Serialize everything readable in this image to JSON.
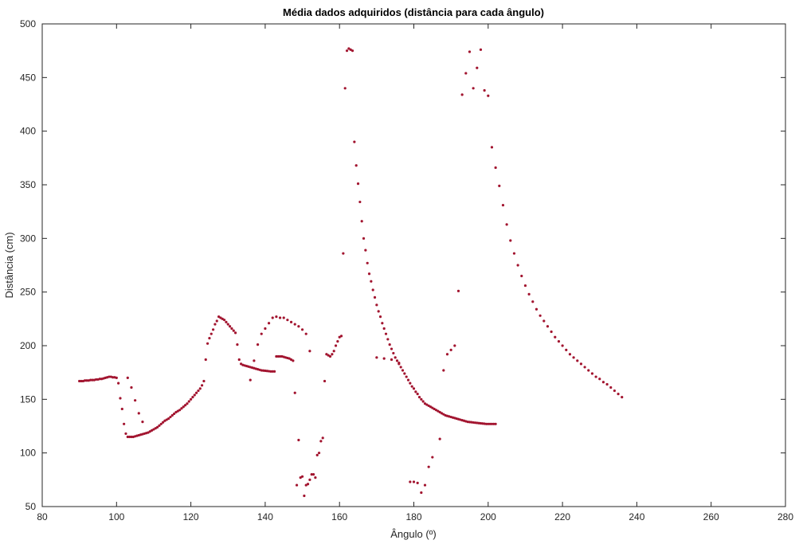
{
  "chart_data": {
    "type": "scatter",
    "title": "Média dados adquiridos (distância para cada ângulo)",
    "xlabel": "Ângulo (º)",
    "ylabel": "Distância (cm)",
    "xlim": [
      80,
      280
    ],
    "ylim": [
      50,
      500
    ],
    "xticks": [
      80,
      100,
      120,
      140,
      160,
      180,
      200,
      220,
      240,
      260,
      280
    ],
    "yticks": [
      50,
      100,
      150,
      200,
      250,
      300,
      350,
      400,
      450,
      500
    ],
    "grid": false,
    "marker_color": "#a2142f",
    "x_step": 0.5,
    "x_start": 90,
    "y": [
      167,
      167,
      167,
      167.5,
      167.5,
      167.5,
      168,
      168,
      168,
      168.5,
      168.5,
      169,
      169,
      169.5,
      170,
      170.5,
      171,
      171,
      170.5,
      170.5,
      170,
      165,
      151,
      141,
      127,
      118,
      115,
      115,
      115,
      115,
      115.5,
      116,
      116.5,
      117,
      117.5,
      118,
      118.5,
      119,
      120,
      121,
      122,
      123,
      124,
      125.5,
      127,
      128.5,
      130,
      131,
      132,
      133.5,
      135,
      136.5,
      138,
      139,
      140,
      141.5,
      143,
      144.5,
      146,
      148,
      150,
      152,
      154,
      156,
      158,
      160,
      163,
      167,
      187,
      202,
      207,
      211,
      215,
      220,
      223,
      227,
      226,
      225,
      224,
      222,
      220,
      218,
      216,
      214,
      212,
      201,
      187,
      183,
      182,
      181.5,
      181,
      180.5,
      180,
      179.5,
      179,
      178.5,
      178,
      177.5,
      177,
      176.8,
      176.6,
      176.4,
      176.2,
      176,
      176,
      176,
      190,
      190,
      190,
      190,
      189.5,
      189,
      188.5,
      188,
      187,
      186,
      156,
      70,
      112,
      77,
      78,
      60,
      70,
      71,
      75,
      80,
      80,
      77,
      98,
      100,
      111,
      114,
      167,
      192,
      191,
      190,
      192,
      195,
      200,
      204,
      208,
      209,
      286,
      440,
      475,
      477,
      476,
      475,
      390,
      368,
      351,
      334,
      316,
      300,
      289,
      277,
      267,
      260,
      252,
      245,
      238,
      232,
      227,
      221,
      216,
      211,
      206,
      201,
      197,
      193,
      189,
      186,
      183,
      180,
      177,
      174,
      171,
      168,
      165,
      162,
      160,
      157,
      155,
      152,
      150,
      148,
      146,
      145,
      144,
      143,
      142,
      141,
      140,
      139,
      138,
      137,
      136,
      135,
      134.5,
      134,
      133.5,
      133,
      132.5,
      132,
      131.5,
      131,
      130.5,
      130,
      129.5,
      129,
      128.8,
      128.6,
      128.4,
      128.2,
      128,
      127.8,
      127.6,
      127.4,
      127.2,
      127,
      127,
      127,
      127,
      127,
      127
    ],
    "extra_points": [
      [
        103,
        170
      ],
      [
        104,
        161
      ],
      [
        105,
        149
      ],
      [
        106,
        137
      ],
      [
        107,
        129
      ],
      [
        136,
        168
      ],
      [
        137,
        186
      ],
      [
        138,
        201
      ],
      [
        139,
        211
      ],
      [
        140,
        216
      ],
      [
        141,
        221
      ],
      [
        142,
        226
      ],
      [
        143,
        227
      ],
      [
        144,
        226
      ],
      [
        145,
        226
      ],
      [
        146,
        224
      ],
      [
        147,
        222
      ],
      [
        148,
        220
      ],
      [
        149,
        218
      ],
      [
        150,
        215
      ],
      [
        151,
        211
      ],
      [
        152,
        195
      ],
      [
        170,
        189
      ],
      [
        172,
        188
      ],
      [
        174,
        187
      ],
      [
        176,
        184
      ],
      [
        179,
        73
      ],
      [
        180,
        73
      ],
      [
        181,
        72
      ],
      [
        182,
        63
      ],
      [
        183,
        70
      ],
      [
        184,
        87
      ],
      [
        185,
        96
      ],
      [
        187,
        113
      ],
      [
        188,
        177
      ],
      [
        189,
        192
      ],
      [
        190,
        196
      ],
      [
        191,
        200
      ],
      [
        192,
        251
      ],
      [
        193,
        434
      ],
      [
        194,
        454
      ],
      [
        195,
        474
      ],
      [
        196,
        440
      ],
      [
        197,
        459
      ],
      [
        198,
        476
      ],
      [
        199,
        438
      ],
      [
        200,
        433
      ],
      [
        201,
        385
      ],
      [
        202,
        366
      ],
      [
        203,
        349
      ],
      [
        204,
        331
      ],
      [
        205,
        313
      ],
      [
        206,
        298
      ],
      [
        207,
        286
      ],
      [
        208,
        275
      ],
      [
        209,
        265
      ],
      [
        210,
        256
      ],
      [
        211,
        248
      ],
      [
        212,
        241
      ],
      [
        213,
        234
      ],
      [
        214,
        228
      ],
      [
        215,
        223
      ],
      [
        216,
        218
      ],
      [
        217,
        213
      ],
      [
        218,
        208
      ],
      [
        219,
        204
      ],
      [
        220,
        200
      ],
      [
        221,
        196
      ],
      [
        222,
        192
      ],
      [
        223,
        189
      ],
      [
        224,
        186
      ],
      [
        225,
        183
      ],
      [
        226,
        180
      ],
      [
        227,
        177
      ],
      [
        228,
        174
      ],
      [
        229,
        171
      ],
      [
        230,
        169
      ],
      [
        231,
        166
      ],
      [
        232,
        164
      ],
      [
        233,
        161
      ],
      [
        234,
        158
      ],
      [
        235,
        155
      ],
      [
        236,
        152
      ]
    ]
  }
}
